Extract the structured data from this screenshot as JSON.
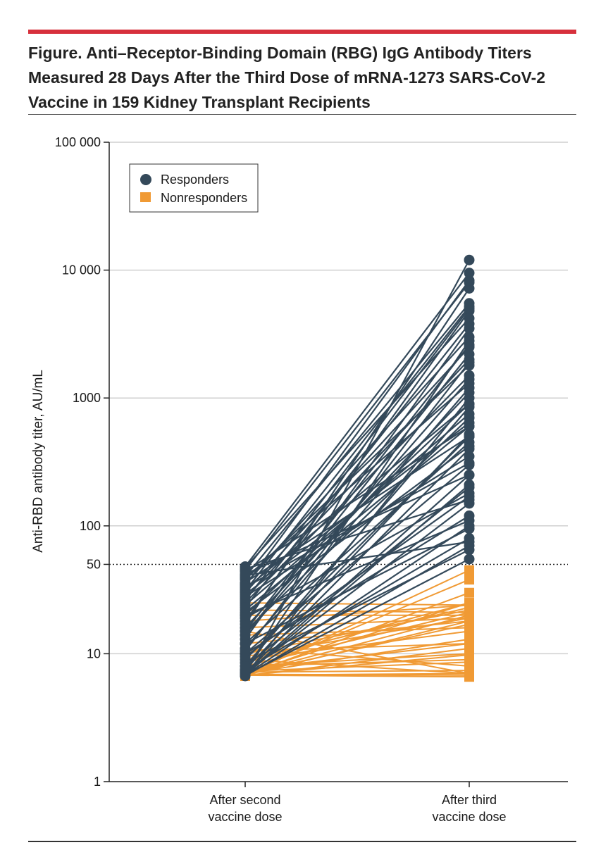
{
  "figure": {
    "title": "Figure. Anti–Receptor-Binding Domain (RBG) IgG Antibody Titers Measured 28 Days After the Third Dose of mRNA-1273 SARS-CoV-2 Vaccine in 159 Kidney Transplant Recipients"
  },
  "colors": {
    "responders": "#34495a",
    "nonresponders": "#f09a34",
    "accent_rule": "#d7303c",
    "grid": "#cfcfcf"
  },
  "chart_data": {
    "type": "line",
    "y_scale": "log",
    "ylim": [
      1,
      100000
    ],
    "ylabel": "Anti-RBD antibody titer, AU/mL",
    "y_ticks": [
      {
        "value": 1,
        "label": "1"
      },
      {
        "value": 10,
        "label": "10"
      },
      {
        "value": 50,
        "label": "50"
      },
      {
        "value": 100,
        "label": "100"
      },
      {
        "value": 1000,
        "label": "1000"
      },
      {
        "value": 10000,
        "label": "10 000"
      },
      {
        "value": 100000,
        "label": "100 000"
      }
    ],
    "x_categories": [
      {
        "line1": "After second",
        "line2": "vaccine dose"
      },
      {
        "line1": "After third",
        "line2": "vaccine dose"
      }
    ],
    "threshold": {
      "value": 50,
      "style": "dotted"
    },
    "grid": true,
    "legend": {
      "position": "top-left",
      "entries": [
        {
          "label": "Responders",
          "marker": "circle",
          "color": "#34495a"
        },
        {
          "label": "Nonresponders",
          "marker": "square",
          "color": "#f09a34"
        }
      ]
    },
    "series": [
      {
        "name": "Nonresponders",
        "marker": "square",
        "pairs": [
          [
            6.8,
            6.6
          ],
          [
            7,
            25
          ],
          [
            8,
            9
          ],
          [
            7,
            20
          ],
          [
            6.7,
            11
          ],
          [
            9,
            7
          ],
          [
            7.5,
            12
          ],
          [
            10,
            22
          ],
          [
            6.8,
            18
          ],
          [
            8,
            10
          ],
          [
            11,
            8
          ],
          [
            20,
            20
          ],
          [
            15,
            7
          ],
          [
            7,
            38
          ],
          [
            6.9,
            6.8
          ],
          [
            12,
            18
          ],
          [
            22,
            21
          ],
          [
            9,
            23
          ],
          [
            7,
            13
          ],
          [
            8.5,
            25
          ],
          [
            18,
            24
          ],
          [
            6.8,
            30
          ],
          [
            7.2,
            7.4
          ],
          [
            14,
            16
          ],
          [
            9.5,
            19
          ],
          [
            6.8,
            45
          ],
          [
            7.3,
            8.6
          ],
          [
            8,
            21
          ],
          [
            10.5,
            12
          ],
          [
            6.8,
            7
          ],
          [
            25,
            24
          ],
          [
            7,
            17
          ],
          [
            16,
            19
          ],
          [
            6.8,
            9.8
          ],
          [
            9,
            15
          ]
        ]
      },
      {
        "name": "Responders",
        "marker": "circle",
        "pairs": [
          [
            48,
            9500
          ],
          [
            45,
            8000
          ],
          [
            40,
            5500
          ],
          [
            35,
            3000
          ],
          [
            30,
            2500
          ],
          [
            25,
            1500
          ],
          [
            20,
            900
          ],
          [
            15,
            700
          ],
          [
            12,
            450
          ],
          [
            10,
            300
          ],
          [
            8,
            200
          ],
          [
            7,
            150
          ],
          [
            6.8,
            100
          ],
          [
            6.7,
            70
          ],
          [
            6.8,
            55
          ],
          [
            9,
            500
          ],
          [
            11,
            1200
          ],
          [
            14,
            2200
          ],
          [
            18,
            4800
          ],
          [
            22,
            600
          ],
          [
            28,
            350
          ],
          [
            32,
            900
          ],
          [
            38,
            1800
          ],
          [
            42,
            250
          ],
          [
            47,
            4200
          ],
          [
            6.8,
            1000
          ],
          [
            6.8,
            12000
          ],
          [
            7,
            400
          ],
          [
            7.5,
            80
          ],
          [
            8.5,
            65
          ],
          [
            10,
            120
          ],
          [
            13,
            3500
          ],
          [
            16,
            1100
          ],
          [
            19,
            180
          ],
          [
            24,
            750
          ],
          [
            27,
            2000
          ],
          [
            31,
            5200
          ],
          [
            36,
            500
          ],
          [
            44,
            600
          ],
          [
            6.9,
            250
          ],
          [
            7.2,
            2800
          ],
          [
            8,
            850
          ],
          [
            9.5,
            170
          ],
          [
            12,
            95
          ],
          [
            14,
            1400
          ],
          [
            17,
            7200
          ],
          [
            21,
            420
          ],
          [
            26,
            5000
          ],
          [
            29,
            640
          ],
          [
            33,
            310
          ],
          [
            39,
            1300
          ],
          [
            46,
            160
          ],
          [
            6.8,
            210
          ],
          [
            7.5,
            520
          ],
          [
            10.5,
            1900
          ],
          [
            15,
            2600
          ],
          [
            20,
            110
          ],
          [
            23,
            3800
          ],
          [
            34,
            8300
          ],
          [
            41,
            75
          ]
        ]
      }
    ]
  }
}
